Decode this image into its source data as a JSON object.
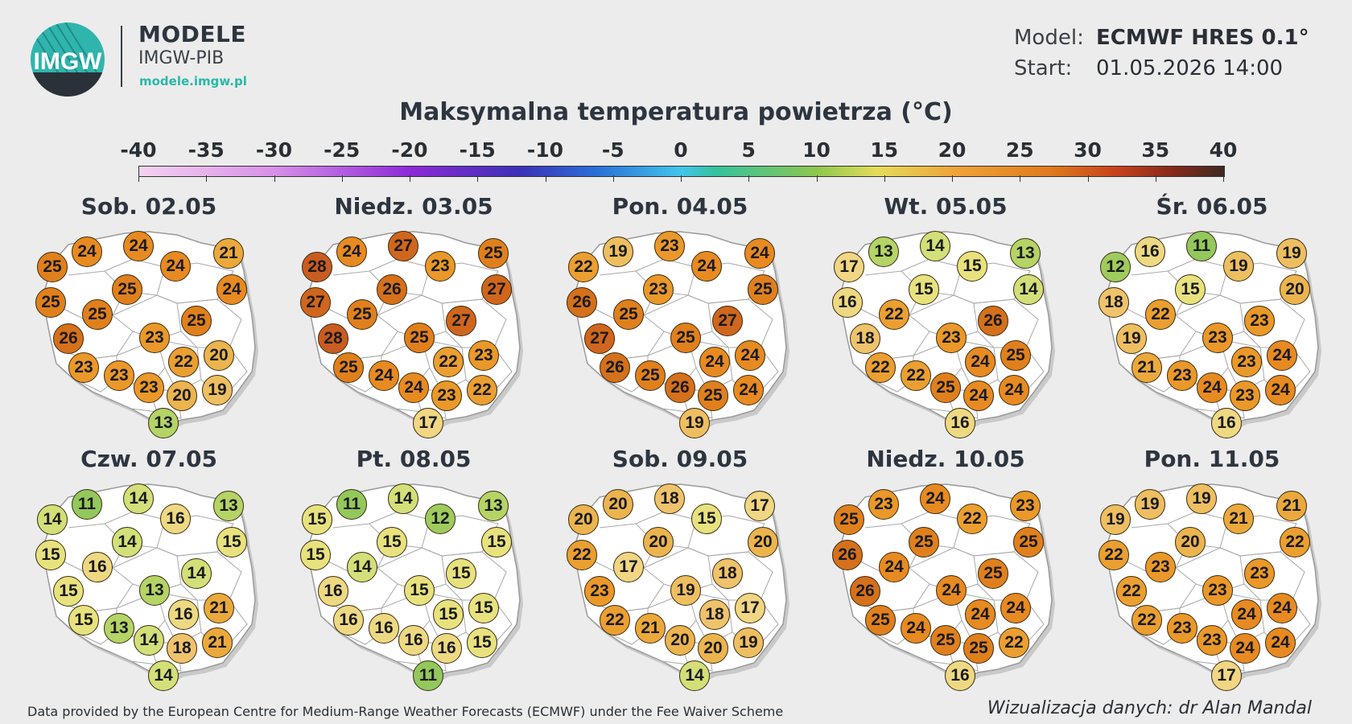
{
  "header": {
    "logo_text": "IMGW",
    "brand_title": "MODELE",
    "brand_subtitle": "IMGW-PIB",
    "brand_url": "modele.imgw.pl",
    "model_label": "Model:",
    "model_value": "ECMWF HRES 0.1°",
    "start_label": "Start:",
    "start_value": "01.05.2026 14:00"
  },
  "title": "Maksymalna temperatura powietrza (°C)",
  "legend": {
    "labels": [
      "-40",
      "-35",
      "-30",
      "-25",
      "-20",
      "-15",
      "-10",
      "-5",
      "0",
      "5",
      "10",
      "15",
      "20",
      "25",
      "30",
      "35",
      "40"
    ],
    "colors": {
      "t11": "#93c85c",
      "t12": "#9fcb5e",
      "t13": "#b4d466",
      "t14": "#d3df78",
      "t15": "#e8e27e",
      "t16": "#eed983",
      "t17": "#f1d683",
      "t18": "#efc36c",
      "t19": "#eebf61",
      "t20": "#ebb44f",
      "t21": "#eba93c",
      "t22": "#eb9f31",
      "t23": "#ea9829",
      "t24": "#e78a21",
      "t25": "#e0801d",
      "t26": "#d5701b",
      "t27": "#d0661d",
      "t28": "#c95c20"
    }
  },
  "days": [
    {
      "label": "Sob. 02.05",
      "temps": [
        24,
        24,
        25,
        21,
        24,
        24,
        25,
        25,
        25,
        25,
        26,
        23,
        23,
        22,
        20,
        23,
        23,
        20,
        19,
        13
      ]
    },
    {
      "label": "Niedz. 03.05",
      "temps": [
        24,
        27,
        28,
        25,
        23,
        27,
        26,
        27,
        25,
        27,
        28,
        25,
        25,
        22,
        23,
        24,
        24,
        23,
        22,
        17
      ]
    },
    {
      "label": "Pon. 04.05",
      "temps": [
        19,
        23,
        22,
        24,
        24,
        25,
        23,
        26,
        25,
        27,
        27,
        25,
        26,
        24,
        24,
        25,
        26,
        25,
        24,
        19
      ]
    },
    {
      "label": "Wt. 05.05",
      "temps": [
        13,
        14,
        17,
        13,
        15,
        14,
        15,
        16,
        22,
        26,
        18,
        23,
        22,
        24,
        25,
        22,
        25,
        24,
        24,
        16
      ]
    },
    {
      "label": "Śr. 06.05",
      "temps": [
        16,
        11,
        12,
        19,
        19,
        20,
        15,
        18,
        22,
        23,
        19,
        23,
        21,
        23,
        24,
        23,
        24,
        23,
        24,
        16
      ]
    },
    {
      "label": "Czw. 07.05",
      "temps": [
        11,
        14,
        14,
        13,
        16,
        15,
        14,
        15,
        16,
        14,
        15,
        13,
        15,
        16,
        21,
        13,
        14,
        18,
        21,
        14
      ]
    },
    {
      "label": "Pt. 08.05",
      "temps": [
        11,
        14,
        15,
        13,
        12,
        15,
        15,
        15,
        14,
        15,
        16,
        15,
        16,
        15,
        15,
        16,
        16,
        16,
        15,
        11
      ]
    },
    {
      "label": "Sob. 09.05",
      "temps": [
        20,
        18,
        20,
        17,
        15,
        20,
        20,
        22,
        17,
        18,
        23,
        19,
        22,
        18,
        17,
        21,
        20,
        20,
        19,
        14
      ]
    },
    {
      "label": "Niedz. 10.05",
      "temps": [
        23,
        24,
        25,
        23,
        22,
        25,
        25,
        26,
        24,
        25,
        26,
        24,
        25,
        24,
        24,
        24,
        25,
        25,
        22,
        16
      ]
    },
    {
      "label": "Pon. 11.05",
      "temps": [
        19,
        19,
        19,
        21,
        21,
        22,
        20,
        22,
        23,
        23,
        22,
        23,
        22,
        24,
        24,
        23,
        23,
        24,
        24,
        17
      ]
    }
  ],
  "footer": {
    "credit": "Data provided by the European Centre for Medium-Range Weather Forecasts (ECMWF) under the Fee Waiver Scheme",
    "author": "Wizualizacja danych: dr Alan Mandal"
  }
}
